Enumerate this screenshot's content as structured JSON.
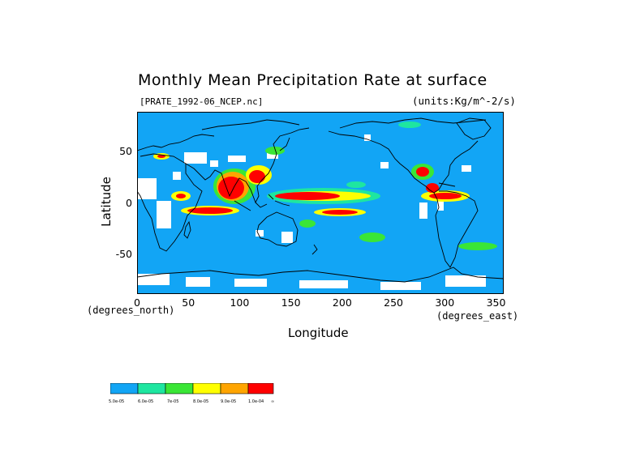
{
  "title": "Monthly Mean Precipitation Rate at surface",
  "file_label": "[PRATE_1992-06_NCEP.nc]",
  "units_label": "(units:Kg/m^-2/s)",
  "x_axis": {
    "label": "Longitude",
    "unit_left": "(degrees_north)",
    "unit_right": "(degrees_east)",
    "ticks": [
      "0",
      "50",
      "100",
      "150",
      "200",
      "250",
      "300",
      "350"
    ],
    "tick_values": [
      0,
      50,
      100,
      150,
      200,
      250,
      300,
      350
    ],
    "range": [
      0,
      357.5
    ]
  },
  "y_axis": {
    "label": "Latitude",
    "ticks": [
      "50",
      "0",
      "-50"
    ],
    "tick_values": [
      50,
      0,
      -50
    ],
    "range": [
      -88,
      88
    ]
  },
  "colors": {
    "ocean_base": "#12a5f5",
    "missing": "#ffffff",
    "coast": "#000000"
  },
  "legend": {
    "colors": [
      "#12a5f5",
      "#1ee6a0",
      "#3ae636",
      "#ffff00",
      "#ffa500",
      "#ff0000"
    ],
    "labels": [
      "5.0e-05",
      "6.0e-05",
      "7e-05",
      "8.0e-05",
      "9.0e-05",
      "1.0e-04",
      "∞"
    ]
  }
}
